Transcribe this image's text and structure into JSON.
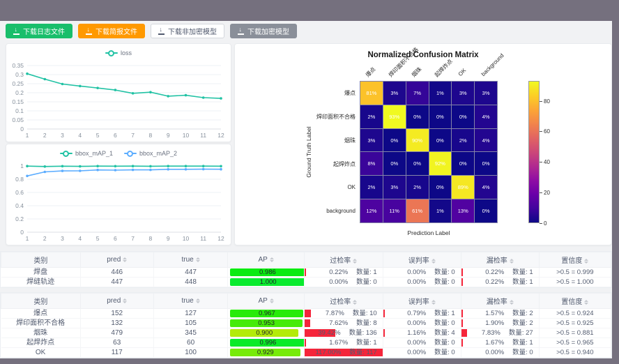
{
  "frame": {
    "bar_color": "#75707e",
    "content_bg": "#f1f2f4"
  },
  "toolbar": {
    "buttons": [
      {
        "label": "下载日志文件",
        "variant": "green",
        "bg": "#19be6b",
        "fg": "#ffffff",
        "border": "#19be6b"
      },
      {
        "label": "下载简报文件",
        "variant": "orange",
        "bg": "#ff9900",
        "fg": "#ffffff",
        "border": "#ff9900"
      },
      {
        "label": "下载非加密模型",
        "variant": "plain",
        "bg": "#ffffff",
        "fg": "#515a6e",
        "border": "#d4d7dc"
      },
      {
        "label": "下载加密模型",
        "variant": "gray",
        "bg": "#8a8f99",
        "fg": "#ffffff",
        "border": "#8a8f99"
      }
    ]
  },
  "chart_data": [
    {
      "type": "line",
      "title": "loss",
      "x": [
        1,
        2,
        3,
        4,
        5,
        6,
        7,
        8,
        9,
        10,
        11,
        12
      ],
      "series": [
        {
          "name": "loss",
          "color": "#21c2a4",
          "values": [
            0.305,
            0.275,
            0.248,
            0.237,
            0.226,
            0.215,
            0.197,
            0.203,
            0.181,
            0.186,
            0.173,
            0.169
          ]
        }
      ],
      "ylim": [
        0,
        0.35
      ],
      "yticks": [
        0,
        0.05,
        0.1,
        0.15,
        0.2,
        0.25,
        0.3,
        0.35
      ],
      "grid": true,
      "legend_position": "top"
    },
    {
      "type": "line",
      "title": "bbox_mAP",
      "x": [
        1,
        2,
        3,
        4,
        5,
        6,
        7,
        8,
        9,
        10,
        11,
        12
      ],
      "series": [
        {
          "name": "bbox_mAP_1",
          "color": "#21c2a4",
          "values": [
            0.998,
            0.992,
            0.997,
            0.994,
            0.998,
            0.997,
            0.998,
            0.996,
            0.998,
            0.998,
            0.998,
            0.997
          ]
        },
        {
          "name": "bbox_mAP_2",
          "color": "#5cadff",
          "values": [
            0.85,
            0.91,
            0.925,
            0.926,
            0.94,
            0.937,
            0.941,
            0.941,
            0.95,
            0.95,
            0.952,
            0.951
          ]
        }
      ],
      "ylim": [
        0,
        1
      ],
      "yticks": [
        0,
        0.2,
        0.4,
        0.6,
        0.8,
        1
      ],
      "grid": true,
      "legend_position": "top"
    },
    {
      "type": "heatmap",
      "title": "Normalized Confusion Matrix",
      "xlabel": "Prediction Label",
      "ylabel": "Ground Truth Label",
      "labels": [
        "爆点",
        "焊印面积不合格",
        "烟珠",
        "起焊炸点",
        "OK",
        "background"
      ],
      "matrix_percent": [
        [
          81,
          3,
          7,
          1,
          3,
          3
        ],
        [
          2,
          93,
          0,
          0,
          0,
          4
        ],
        [
          3,
          0,
          90,
          0,
          2,
          4
        ],
        [
          8,
          0,
          0,
          92,
          0,
          0
        ],
        [
          2,
          3,
          2,
          0,
          89,
          4
        ],
        [
          12,
          11,
          61,
          1,
          13,
          0
        ]
      ],
      "vmax": 93,
      "colormap": "plasma",
      "colorbar_ticks": [
        0,
        20,
        40,
        60,
        80
      ]
    }
  ],
  "tables": [
    {
      "headers": {
        "class": "类别",
        "pred": "pred",
        "true": "true",
        "ap": "AP",
        "over": "过检率",
        "mis": "误判率",
        "miss": "漏检率",
        "conf": "置信度"
      },
      "rows": [
        {
          "class": "焊盘",
          "pred": "446",
          "true": "447",
          "ap": 0.986,
          "ap_text": "0.986",
          "over": 0.22,
          "over_pct": "0.22%",
          "over_n": "数量: 1",
          "mis": 0,
          "mis_pct": "0.00%",
          "mis_n": "数量: 0",
          "miss": 0.22,
          "miss_pct": "0.22%",
          "miss_n": "数量: 1",
          "conf": ">0.5 = 0.999"
        },
        {
          "class": "焊缝轨迹",
          "pred": "447",
          "true": "448",
          "ap": 1.0,
          "ap_text": "1.000",
          "over": 0,
          "over_pct": "0.00%",
          "over_n": "数量: 0",
          "mis": 0,
          "mis_pct": "0.00%",
          "mis_n": "数量: 0",
          "miss": 0.22,
          "miss_pct": "0.22%",
          "miss_n": "数量: 1",
          "conf": ">0.5 = 1.000"
        }
      ]
    },
    {
      "headers": {
        "class": "类别",
        "pred": "pred",
        "true": "true",
        "ap": "AP",
        "over": "过检率",
        "mis": "误判率",
        "miss": "漏检率",
        "conf": "置信度"
      },
      "rows": [
        {
          "class": "爆点",
          "pred": "152",
          "true": "127",
          "ap": 0.967,
          "ap_text": "0.967",
          "over": 7.87,
          "over_pct": "7.87%",
          "over_n": "数量: 10",
          "mis": 0.79,
          "mis_pct": "0.79%",
          "mis_n": "数量: 1",
          "miss": 1.57,
          "miss_pct": "1.57%",
          "miss_n": "数量: 2",
          "conf": ">0.5 = 0.924"
        },
        {
          "class": "焊印面积不合格",
          "pred": "132",
          "true": "105",
          "ap": 0.953,
          "ap_text": "0.953",
          "over": 7.62,
          "over_pct": "7.62%",
          "over_n": "数量: 8",
          "mis": 0,
          "mis_pct": "0.00%",
          "mis_n": "数量: 0",
          "miss": 1.9,
          "miss_pct": "1.90%",
          "miss_n": "数量: 2",
          "conf": ">0.5 = 0.925"
        },
        {
          "class": "烟珠",
          "pred": "479",
          "true": "345",
          "ap": 0.9,
          "ap_text": "0.900",
          "over": 39.42,
          "over_pct": "39.42%",
          "over_n": "数量: 136",
          "mis": 1.16,
          "mis_pct": "1.16%",
          "mis_n": "数量: 4",
          "miss": 7.83,
          "miss_pct": "7.83%",
          "miss_n": "数量: 27",
          "conf": ">0.5 = 0.881"
        },
        {
          "class": "起焊炸点",
          "pred": "63",
          "true": "60",
          "ap": 0.996,
          "ap_text": "0.996",
          "over": 1.67,
          "over_pct": "1.67%",
          "over_n": "数量: 1",
          "mis": 0,
          "mis_pct": "0.00%",
          "mis_n": "数量: 0",
          "miss": 1.67,
          "miss_pct": "1.67%",
          "miss_n": "数量: 1",
          "conf": ">0.5 = 0.965"
        },
        {
          "class": "OK",
          "pred": "117",
          "true": "100",
          "ap": 0.929,
          "ap_text": "0.929",
          "over": 117.0,
          "over_pct": "117.00%",
          "over_n": "数量: 117",
          "mis": 0,
          "mis_pct": "0.00%",
          "mis_n": "数量: 0",
          "miss": 0,
          "miss_pct": "0.00%",
          "miss_n": "数量: 0",
          "conf": ">0.5 = 0.940"
        }
      ]
    }
  ]
}
